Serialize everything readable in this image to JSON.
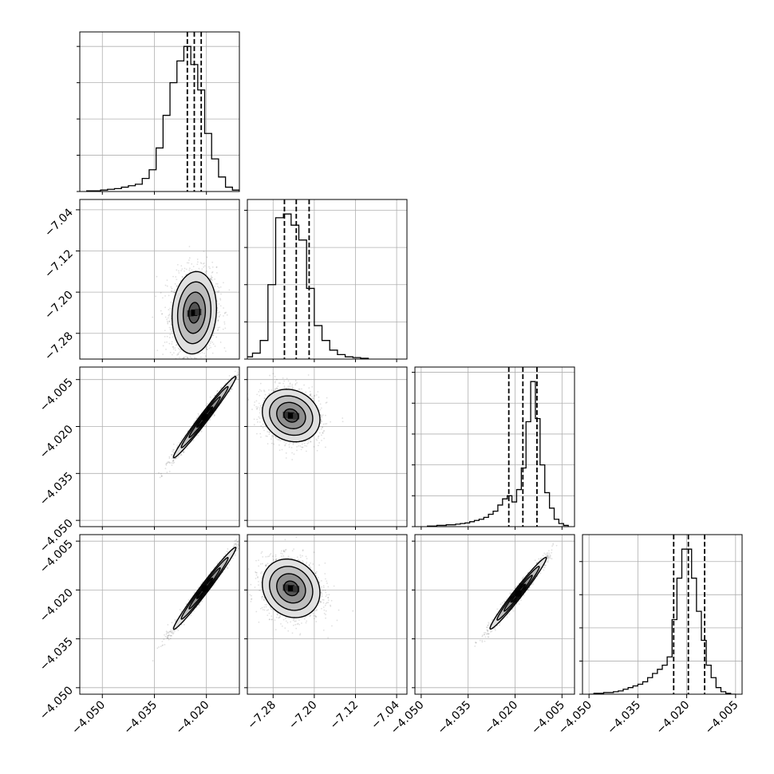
{
  "chart_data": {
    "type": "corner",
    "grid": true,
    "parameters": [
      {
        "range": [
          -4.0565,
          -4.0105
        ],
        "ticks": [
          -4.05,
          -4.035,
          -4.02
        ],
        "tick_labels": [
          "−4.050",
          "−4.035",
          "−4.020"
        ],
        "median": -4.0235,
        "quantiles": [
          -4.0255,
          -4.0235,
          -4.0215
        ]
      },
      {
        "range": [
          -7.33,
          -7.02
        ],
        "ticks": [
          -7.28,
          -7.2,
          -7.12,
          -7.04
        ],
        "tick_labels": [
          "−7.28",
          "−7.20",
          "−7.12",
          "−7.04"
        ],
        "median": -7.235,
        "quantiles": [
          -7.258,
          -7.235,
          -7.21
        ]
      },
      {
        "range": [
          -4.052,
          -4.001
        ],
        "ticks": [
          -4.05,
          -4.035,
          -4.02,
          -4.005
        ],
        "tick_labels": [
          "−4.050",
          "−4.035",
          "−4.020",
          "−4.005"
        ],
        "median": -4.0175,
        "quantiles": [
          -4.022,
          -4.0175,
          -4.013
        ]
      },
      {
        "range": [
          -4.052,
          -4.003
        ],
        "ticks": [
          -4.05,
          -4.035,
          -4.02,
          -4.005
        ],
        "tick_labels": [
          "−4.050",
          "−4.035",
          "−4.020",
          "−4.005"
        ],
        "median": -4.0195,
        "quantiles": [
          -4.024,
          -4.0195,
          -4.0145
        ]
      }
    ],
    "histograms": [
      {
        "parameter": 0,
        "bin_edges": [
          -4.0545,
          -4.0525,
          -4.0505,
          -4.0485,
          -4.0465,
          -4.0445,
          -4.0425,
          -4.0405,
          -4.0385,
          -4.0365,
          -4.0345,
          -4.0325,
          -4.0305,
          -4.0285,
          -4.0265,
          -4.0245,
          -4.0225,
          -4.0205,
          -4.0185,
          -4.0165,
          -4.0145,
          -4.0125,
          -4.0105
        ],
        "counts": [
          1,
          1,
          2,
          3,
          4,
          6,
          8,
          10,
          18,
          30,
          60,
          105,
          150,
          180,
          200,
          175,
          140,
          80,
          45,
          20,
          6,
          2
        ]
      },
      {
        "parameter": 1,
        "bin_edges": [
          -7.335,
          -7.32,
          -7.305,
          -7.29,
          -7.275,
          -7.26,
          -7.245,
          -7.23,
          -7.215,
          -7.2,
          -7.185,
          -7.17,
          -7.155,
          -7.14,
          -7.125,
          -7.11,
          -7.095
        ],
        "counts": [
          3,
          8,
          25,
          100,
          190,
          195,
          180,
          160,
          95,
          45,
          25,
          12,
          6,
          3,
          2,
          1
        ]
      },
      {
        "parameter": 2,
        "bin_edges": [
          -4.048,
          -4.0465,
          -4.045,
          -4.0435,
          -4.042,
          -4.0405,
          -4.039,
          -4.0375,
          -4.036,
          -4.0345,
          -4.033,
          -4.0315,
          -4.03,
          -4.0285,
          -4.027,
          -4.0255,
          -4.024,
          -4.0225,
          -4.021,
          -4.0195,
          -4.018,
          -4.0165,
          -4.015,
          -4.0135,
          -4.012,
          -4.0105,
          -4.009,
          -4.0075,
          -4.006,
          -4.0045,
          -4.003
        ],
        "counts": [
          1,
          1,
          2,
          2,
          3,
          3,
          4,
          5,
          6,
          8,
          10,
          12,
          15,
          20,
          25,
          35,
          45,
          50,
          40,
          60,
          95,
          170,
          235,
          175,
          100,
          55,
          30,
          12,
          5,
          2
        ]
      },
      {
        "parameter": 3,
        "bin_edges": [
          -4.05,
          -4.0485,
          -4.047,
          -4.0455,
          -4.044,
          -4.0425,
          -4.041,
          -4.0395,
          -4.038,
          -4.0365,
          -4.035,
          -4.0335,
          -4.032,
          -4.0305,
          -4.029,
          -4.0275,
          -4.026,
          -4.0245,
          -4.023,
          -4.0215,
          -4.02,
          -4.0185,
          -4.017,
          -4.0155,
          -4.014,
          -4.0125,
          -4.011,
          -4.0095,
          -4.008,
          -4.0065,
          -4.005
        ],
        "counts": [
          0,
          1,
          1,
          2,
          2,
          3,
          4,
          6,
          8,
          10,
          12,
          15,
          20,
          25,
          30,
          35,
          45,
          90,
          140,
          175,
          175,
          140,
          100,
          65,
          35,
          20,
          8,
          3,
          1,
          0
        ]
      }
    ],
    "pairs": [
      {
        "x": 0,
        "y": 1,
        "center": [
          -4.0235,
          -7.24
        ],
        "sigma": [
          0.0032,
          0.04
        ],
        "rho": 0.1,
        "scatter_points": 2000
      },
      {
        "x": 0,
        "y": 2,
        "center": [
          -4.0205,
          -4.017
        ],
        "sigma": [
          0.0045,
          0.0065
        ],
        "rho": 0.985,
        "scatter_points": 1600
      },
      {
        "x": 1,
        "y": 2,
        "center": [
          -7.245,
          -4.0165
        ],
        "sigma": [
          0.028,
          0.0042
        ],
        "rho": -0.15,
        "scatter_points": 1800
      },
      {
        "x": 0,
        "y": 3,
        "center": [
          -4.0205,
          -4.0195
        ],
        "sigma": [
          0.0045,
          0.0063
        ],
        "rho": 0.985,
        "scatter_points": 1600
      },
      {
        "x": 1,
        "y": 3,
        "center": [
          -7.245,
          -4.0195
        ],
        "sigma": [
          0.028,
          0.0045
        ],
        "rho": -0.15,
        "scatter_points": 1800
      },
      {
        "x": 2,
        "y": 3,
        "center": [
          -4.019,
          -4.021
        ],
        "sigma": [
          0.0045,
          0.0055
        ],
        "rho": 0.98,
        "scatter_points": 1600
      }
    ],
    "contour_levels_sigma": [
      0.5,
      1.0,
      1.5,
      2.0
    ],
    "density_shades": [
      "#e0e0e0",
      "#bfbfbf",
      "#8f8f8f",
      "#555555",
      "#000000"
    ]
  }
}
